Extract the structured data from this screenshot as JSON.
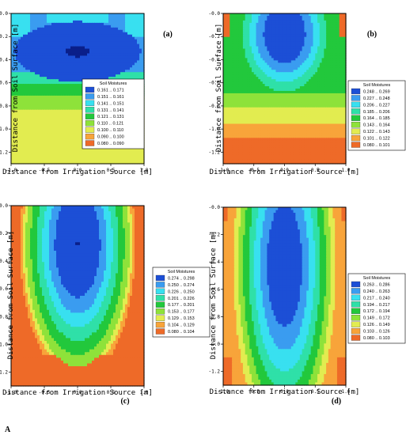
{
  "figure_label": "A",
  "chart_data": [
    {
      "type": "heatmap",
      "panel_label": "(a)",
      "panel_label_show": "top",
      "xlabel": "Distance from Irrigation Source [m]",
      "ylabel": "Distance from Soil Surface [m]",
      "xlim": [
        -1.0,
        1.0
      ],
      "ylim": [
        -1.3,
        0.0
      ],
      "xticks": [
        "-1.0",
        "-0.5",
        "0.0",
        "0.5",
        "1.0"
      ],
      "yticks": [
        "-0.0",
        "-0.2",
        "-0.4",
        "-0.6",
        "-0.8",
        "-1.0",
        "-1.2"
      ],
      "legend_title": "Soil Moistures",
      "legend": [
        {
          "label": "0.161 .. 0.171",
          "color": "#1c4fd6"
        },
        {
          "label": "0.151 .. 0.161",
          "color": "#3a9cf0"
        },
        {
          "label": "0.141 .. 0.151",
          "color": "#38e0f0"
        },
        {
          "label": "0.131 .. 0.141",
          "color": "#2fe0a8"
        },
        {
          "label": "0.121 .. 0.131",
          "color": "#22c83c"
        },
        {
          "label": "0.110 .. 0.121",
          "color": "#8ee23a"
        },
        {
          "label": "0.100 .. 0.110",
          "color": "#e2ec50"
        },
        {
          "label": "0.090 .. 0.100",
          "color": "#f8a43a"
        },
        {
          "label": "0.080 .. 0.090",
          "color": "#ee6a28"
        }
      ],
      "peak": [
        0.0,
        -0.32
      ],
      "max_level": 8,
      "field": "a"
    },
    {
      "type": "heatmap",
      "panel_label": "(b)",
      "xlabel": "Distance from Irrigation Source [m]",
      "ylabel": "Distance from Soil Surface [m]",
      "xlim": [
        -1.0,
        1.0
      ],
      "ylim": [
        -1.3,
        0.0
      ],
      "xticks": [
        "-1.0",
        "-0.5",
        "0.0",
        "0.5",
        "1.0"
      ],
      "yticks": [
        "-0.0",
        "-0.2",
        "-0.4",
        "-0.6",
        "-0.8",
        "-1.0",
        "-1.2"
      ],
      "legend_title": "Soil Moistures",
      "legend": [
        {
          "label": "0.248 .. 0.269",
          "color": "#1c4fd6"
        },
        {
          "label": "0.227 .. 0.248",
          "color": "#3a9cf0"
        },
        {
          "label": "0.206 .. 0.227",
          "color": "#38e0f0"
        },
        {
          "label": "0.185 .. 0.206",
          "color": "#2fe0a8"
        },
        {
          "label": "0.164 .. 0.185",
          "color": "#22c83c"
        },
        {
          "label": "0.143 .. 0.164",
          "color": "#8ee23a"
        },
        {
          "label": "0.122 .. 0.143",
          "color": "#e2ec50"
        },
        {
          "label": "0.101 .. 0.122",
          "color": "#f8a43a"
        },
        {
          "label": "0.080 .. 0.101",
          "color": "#ee6a28"
        }
      ],
      "field": "b"
    },
    {
      "type": "heatmap",
      "panel_label": "(c)",
      "xlabel": "Distance from Irrigation Source [m]",
      "ylabel": "Distance from Soil Surface [m]",
      "xlim": [
        -1.0,
        1.0
      ],
      "ylim": [
        -1.3,
        0.0
      ],
      "xticks": [
        "-1.0",
        "-0.5",
        "0.0",
        "0.5",
        "1.0"
      ],
      "yticks": [
        "-0.0",
        "-0.2",
        "-0.4",
        "-0.6",
        "-0.8",
        "-1.0",
        "-1.2"
      ],
      "legend_title": "Soil Moistures",
      "legend": [
        {
          "label": "0.274 .. 0.298",
          "color": "#1c4fd6"
        },
        {
          "label": "0.250 .. 0.274",
          "color": "#3a9cf0"
        },
        {
          "label": "0.226 .. 0.250",
          "color": "#38e0f0"
        },
        {
          "label": "0.201 .. 0.226",
          "color": "#2fe0a8"
        },
        {
          "label": "0.177 .. 0.201",
          "color": "#22c83c"
        },
        {
          "label": "0.153 .. 0.177",
          "color": "#8ee23a"
        },
        {
          "label": "0.129 .. 0.153",
          "color": "#e2ec50"
        },
        {
          "label": "0.104 .. 0.129",
          "color": "#f8a43a"
        },
        {
          "label": "0.080 .. 0.104",
          "color": "#ee6a28"
        }
      ],
      "field": "c"
    },
    {
      "type": "heatmap",
      "panel_label": "(d)",
      "xlabel": "Distance from Irrigation Source [m]",
      "ylabel": "Distance from Soil Surface [m]",
      "xlim": [
        -1.0,
        1.0
      ],
      "ylim": [
        -1.3,
        0.0
      ],
      "xticks": [
        "-1.0",
        "-0.5",
        "0.0",
        "0.5",
        "1.0"
      ],
      "yticks": [
        "-0.0",
        "-0.2",
        "-0.4",
        "-0.6",
        "-0.8",
        "-1.0",
        "-1.2"
      ],
      "legend_title": "Soil Moistures",
      "legend": [
        {
          "label": "0.263 .. 0.286",
          "color": "#1c4fd6"
        },
        {
          "label": "0.240 .. 0.263",
          "color": "#3a9cf0"
        },
        {
          "label": "0.217 .. 0.240",
          "color": "#38e0f0"
        },
        {
          "label": "0.194 .. 0.217",
          "color": "#2fe0a8"
        },
        {
          "label": "0.172 .. 0.194",
          "color": "#22c83c"
        },
        {
          "label": "0.149 .. 0.172",
          "color": "#8ee23a"
        },
        {
          "label": "0.126 .. 0.149",
          "color": "#e2ec50"
        },
        {
          "label": "0.103 .. 0.126",
          "color": "#f8a43a"
        },
        {
          "label": "0.080 .. 0.103",
          "color": "#ee6a28"
        }
      ],
      "field": "d"
    }
  ]
}
